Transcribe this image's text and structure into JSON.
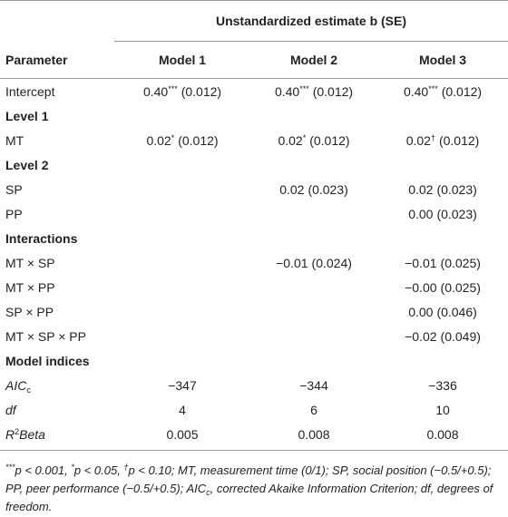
{
  "table": {
    "spanner": "Unstandardized estimate b (SE)",
    "columns": [
      "Parameter",
      "Model 1",
      "Model 2",
      "Model 3"
    ],
    "rows": [
      {
        "label": "Intercept",
        "cells": [
          {
            "estimate": "0.40",
            "sig": "***",
            "se": "(0.012)"
          },
          {
            "estimate": "0.40",
            "sig": "***",
            "se": "(0.012)"
          },
          {
            "estimate": "0.40",
            "sig": "***",
            "se": "(0.012)"
          }
        ]
      },
      {
        "section": "Level 1"
      },
      {
        "label": "MT",
        "cells": [
          {
            "estimate": "0.02",
            "sig": "*",
            "se": "(0.012)"
          },
          {
            "estimate": "0.02",
            "sig": "*",
            "se": "(0.012)"
          },
          {
            "estimate": "0.02",
            "sig": "†",
            "se": "(0.012)"
          }
        ]
      },
      {
        "section": "Level 2"
      },
      {
        "label": "SP",
        "cells": [
          null,
          {
            "estimate": "0.02",
            "se": "(0.023)"
          },
          {
            "estimate": "0.02",
            "se": "(0.023)"
          }
        ]
      },
      {
        "label": "PP",
        "cells": [
          null,
          null,
          {
            "estimate": "0.00",
            "se": "(0.023)"
          }
        ]
      },
      {
        "section": "Interactions"
      },
      {
        "label": "MT × SP",
        "cells": [
          null,
          {
            "estimate": "−0.01",
            "se": "(0.024)"
          },
          {
            "estimate": "−0.01",
            "se": "(0.025)"
          }
        ]
      },
      {
        "label": "MT × PP",
        "cells": [
          null,
          null,
          {
            "estimate": "−0.00",
            "se": "(0.025)"
          }
        ]
      },
      {
        "label": "SP × PP",
        "cells": [
          null,
          null,
          {
            "estimate": "0.00",
            "se": "(0.046)"
          }
        ]
      },
      {
        "label": "MT × SP × PP",
        "cells": [
          null,
          null,
          {
            "estimate": "−0.02",
            "se": "(0.049)"
          }
        ]
      },
      {
        "section": "Model indices"
      },
      {
        "label": [
          {
            "text": "AIC",
            "style": "italic"
          },
          {
            "text": "c",
            "style": "sub"
          }
        ],
        "cells": [
          {
            "estimate": "−347"
          },
          {
            "estimate": "−344"
          },
          {
            "estimate": "−336"
          }
        ]
      },
      {
        "label": [
          {
            "text": "df",
            "style": "italic"
          }
        ],
        "cells": [
          {
            "estimate": "4"
          },
          {
            "estimate": "6"
          },
          {
            "estimate": "10"
          }
        ]
      },
      {
        "label": [
          {
            "text": "R",
            "style": "italic"
          },
          {
            "text": "2",
            "style": "sup"
          },
          {
            "text": "Beta",
            "style": "italic"
          }
        ],
        "cells": [
          {
            "estimate": "0.005"
          },
          {
            "estimate": "0.008"
          },
          {
            "estimate": "0.008"
          }
        ]
      }
    ]
  },
  "footnote": [
    {
      "text": "***",
      "style": "sup"
    },
    {
      "text": "p < 0.001, "
    },
    {
      "text": "*",
      "style": "sup"
    },
    {
      "text": "p < 0.05, "
    },
    {
      "text": "†",
      "style": "sup"
    },
    {
      "text": "p < 0.10; MT, measurement time (0/1); SP, social position (−0.5/+0.5); PP, peer performance (−0.5/+0.5); AIC"
    },
    {
      "text": "c",
      "style": "sub"
    },
    {
      "text": ", corrected Akaike Information Criterion; df, degrees of freedom."
    }
  ]
}
